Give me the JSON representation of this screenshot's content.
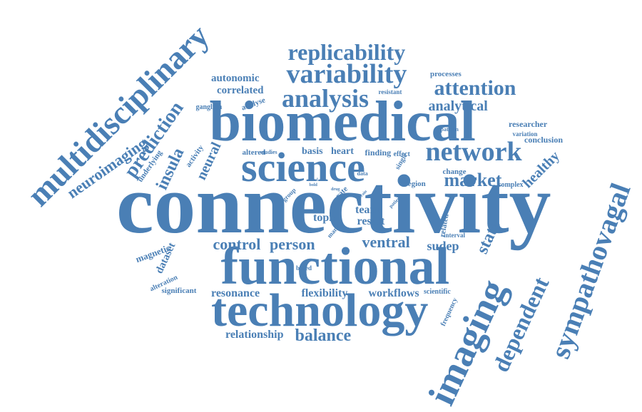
{
  "color": "#4a7fb5",
  "words": [
    "connectivity",
    "biomedical",
    "functional",
    "technology",
    "science",
    "multidisciplinary",
    "imaging",
    "sympathovagal",
    "network",
    "variability",
    "analysis",
    "replicability",
    "attention",
    "dependent",
    "prediction",
    "neuroimaging",
    "market",
    "insula",
    "analytical",
    "state",
    "ventral",
    "control",
    "person",
    "balance",
    "healthy",
    "neural",
    "flexibility",
    "resonance",
    "relationship",
    "workflows",
    "sudep",
    "topic",
    "team",
    "result",
    "autonomic",
    "correlated",
    "heart",
    "basis",
    "finding",
    "dataset",
    "magnetic",
    "researcher",
    "conclusion",
    "variation",
    "pattern",
    "processes",
    "resistant",
    "analyse",
    "ganglion",
    "underlying",
    "activity",
    "altered",
    "studies",
    "data",
    "effect",
    "single",
    "change",
    "complex",
    "region",
    "related",
    "interval",
    "frequency",
    "scientific",
    "based",
    "alteration",
    "significant",
    "group",
    "rate",
    "drug",
    "basal",
    "bold",
    "brain",
    "patient",
    "many"
  ]
}
